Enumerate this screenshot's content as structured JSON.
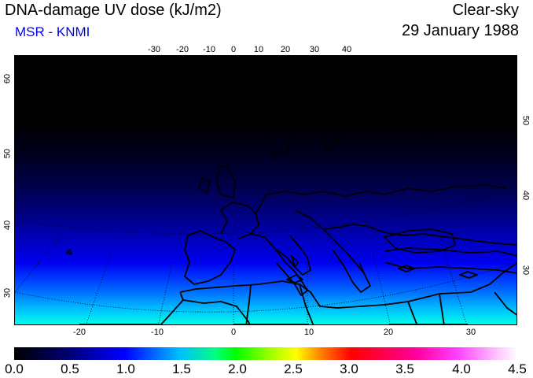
{
  "header": {
    "title": "DNA-damage UV dose (kJ/m2)",
    "subtitle": "MSR - KNMI",
    "mode": "Clear-sky",
    "date": "29 January 1988"
  },
  "map": {
    "top_lon_labels": [
      "-30",
      "-20",
      "-10",
      "0",
      "10",
      "20",
      "30",
      "40"
    ],
    "bottom_lon_labels": [
      "-20",
      "-10",
      "0",
      "10",
      "20",
      "30"
    ],
    "left_lat_labels": [
      "60",
      "50",
      "40",
      "30"
    ],
    "right_lat_labels": [
      "50",
      "40",
      "30"
    ],
    "ocean_land_color": "#000000",
    "coastline_color": "#000000"
  },
  "colorbar": {
    "labels": [
      "0.0",
      "0.5",
      "1.0",
      "1.5",
      "2.0",
      "2.5",
      "3.0",
      "3.5",
      "4.0",
      "4.5"
    ],
    "min": 0.0,
    "max": 4.5
  }
}
